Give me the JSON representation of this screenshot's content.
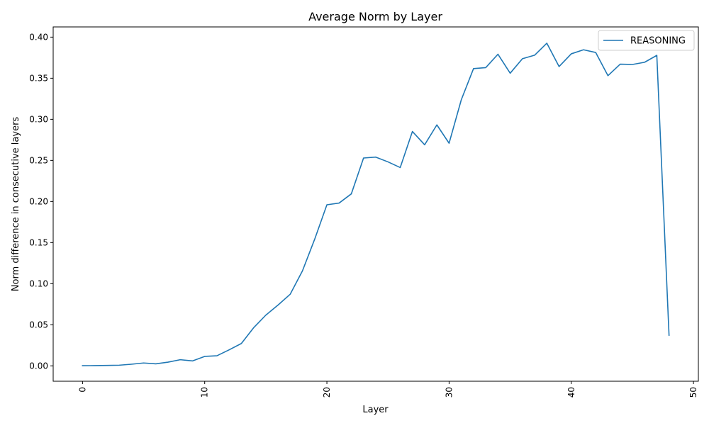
{
  "chart_data": {
    "type": "line",
    "title": "Average Norm by Layer",
    "xlabel": "Layer",
    "ylabel": "Norm difference in consecutive layers",
    "xlim": [
      -2.4,
      50.4
    ],
    "ylim": [
      -0.0187,
      0.4124
    ],
    "xticks": [
      0,
      10,
      20,
      30,
      40,
      50
    ],
    "yticks": [
      0.0,
      0.05,
      0.1,
      0.15,
      0.2,
      0.25,
      0.3,
      0.35,
      0.4
    ],
    "ytick_labels": [
      "0.00",
      "0.05",
      "0.10",
      "0.15",
      "0.20",
      "0.25",
      "0.30",
      "0.35",
      "0.40"
    ],
    "xtick_rotation": "vertical",
    "grid": false,
    "legend": "top-right",
    "color": "#1f77b4",
    "series": [
      {
        "name": "REASONING",
        "x": [
          0,
          1,
          2,
          3,
          4,
          5,
          6,
          7,
          8,
          9,
          10,
          11,
          12,
          13,
          14,
          15,
          16,
          17,
          18,
          19,
          20,
          21,
          22,
          23,
          24,
          25,
          26,
          27,
          28,
          29,
          30,
          31,
          32,
          33,
          34,
          35,
          36,
          37,
          38,
          39,
          40,
          41,
          42,
          43,
          44,
          45,
          46,
          47,
          48
        ],
        "values": [
          0.0002,
          0.0003,
          0.0005,
          0.0008,
          0.002,
          0.0035,
          0.0025,
          0.0045,
          0.0075,
          0.006,
          0.0115,
          0.0123,
          0.0195,
          0.0272,
          0.0463,
          0.0617,
          0.074,
          0.0872,
          0.1156,
          0.1541,
          0.196,
          0.1981,
          0.2093,
          0.2529,
          0.254,
          0.2482,
          0.2413,
          0.2852,
          0.269,
          0.2932,
          0.2709,
          0.3238,
          0.3617,
          0.3629,
          0.3792,
          0.3561,
          0.3737,
          0.378,
          0.3926,
          0.3642,
          0.3797,
          0.3846,
          0.3813,
          0.3531,
          0.3671,
          0.3667,
          0.3694,
          0.3778,
          0.0372
        ]
      }
    ]
  }
}
